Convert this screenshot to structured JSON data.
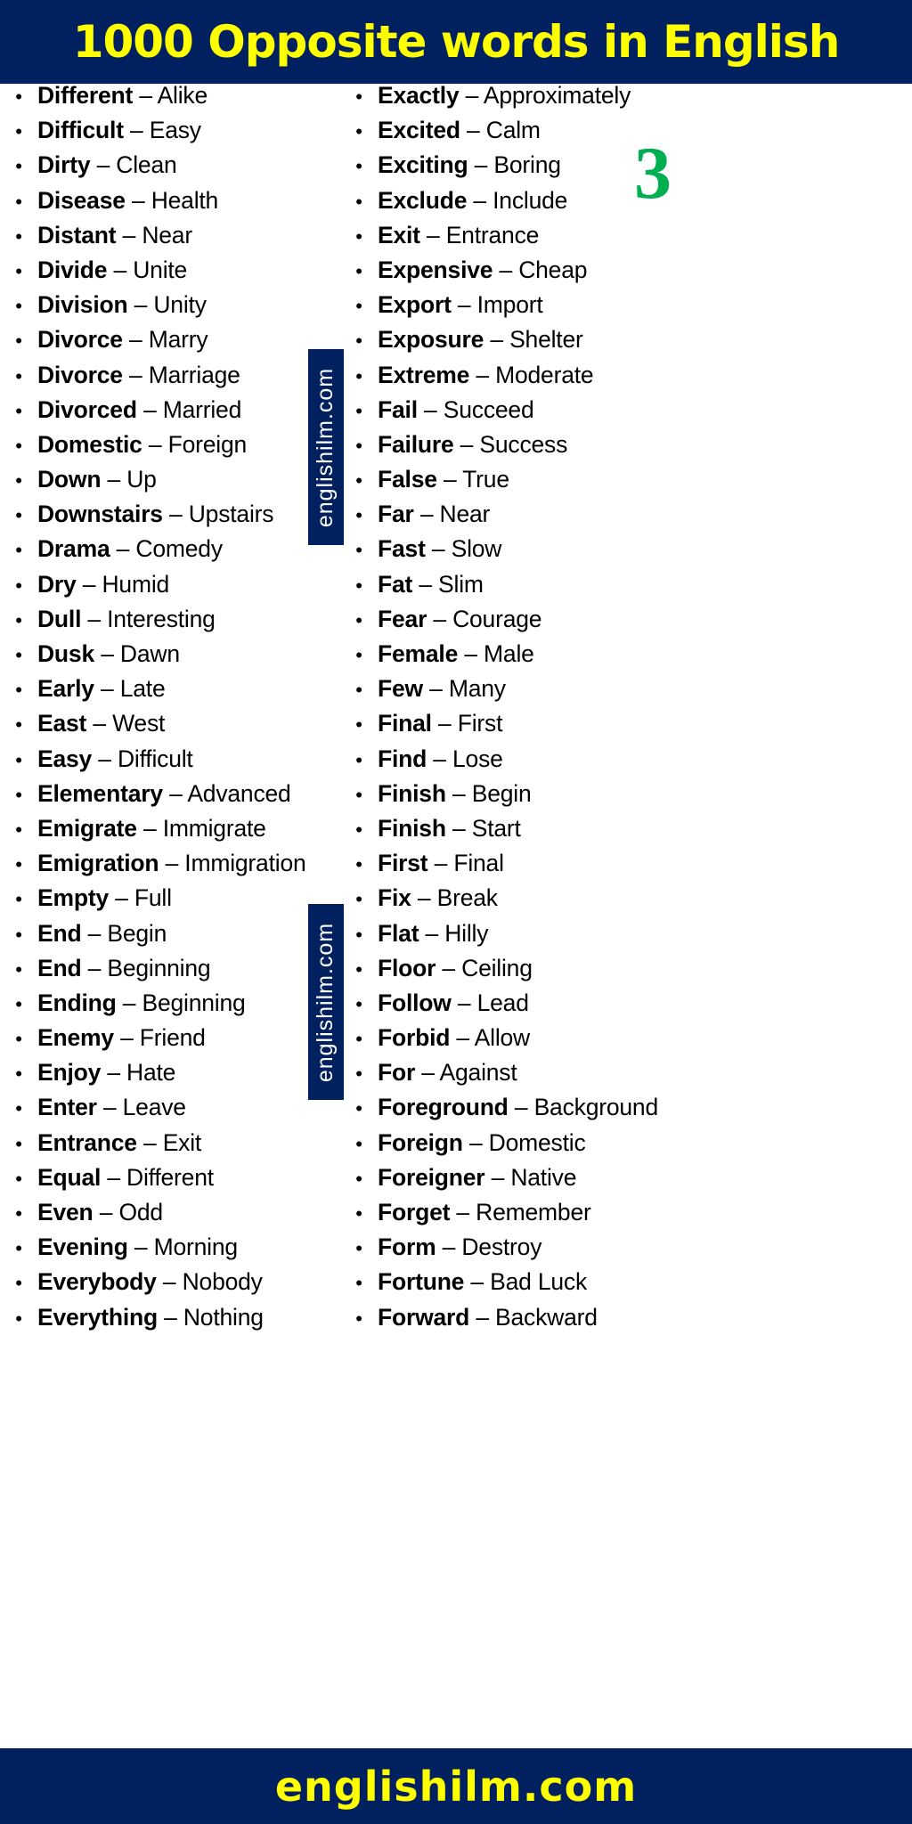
{
  "header": {
    "title": "1000 Opposite words in English"
  },
  "page_number": "3",
  "watermark": "englishilm.com",
  "footer": {
    "text": "englishilm.com"
  },
  "colors": {
    "navy": "#002060",
    "yellow": "#ffff00",
    "green": "#00b050"
  },
  "separator": "–",
  "left_column": [
    [
      "Different",
      "Alike"
    ],
    [
      "Difficult",
      "Easy"
    ],
    [
      "Dirty",
      "Clean"
    ],
    [
      "Disease",
      "Health"
    ],
    [
      "Distant",
      "Near"
    ],
    [
      "Divide",
      "Unite"
    ],
    [
      "Division",
      "Unity"
    ],
    [
      "Divorce",
      "Marry"
    ],
    [
      "Divorce",
      "Marriage"
    ],
    [
      "Divorced",
      "Married"
    ],
    [
      "Domestic",
      "Foreign"
    ],
    [
      "Down",
      "Up"
    ],
    [
      "Downstairs",
      "Upstairs"
    ],
    [
      "Drama",
      "Comedy"
    ],
    [
      "Dry",
      "Humid"
    ],
    [
      "Dull",
      "Interesting"
    ],
    [
      "Dusk",
      "Dawn"
    ],
    [
      "Early",
      "Late"
    ],
    [
      "East",
      "West"
    ],
    [
      "Easy",
      "Difficult"
    ],
    [
      "Elementary",
      "Advanced"
    ],
    [
      "Emigrate",
      "Immigrate"
    ],
    [
      "Emigration",
      "Immigration"
    ],
    [
      "Empty",
      "Full"
    ],
    [
      "End",
      "Begin"
    ],
    [
      "End",
      "Beginning"
    ],
    [
      "Ending",
      "Beginning"
    ],
    [
      "Enemy",
      "Friend"
    ],
    [
      "Enjoy",
      "Hate"
    ],
    [
      "Enter",
      "Leave"
    ],
    [
      "Entrance",
      "Exit"
    ],
    [
      "Equal",
      "Different"
    ],
    [
      "Even",
      "Odd"
    ],
    [
      "Evening",
      "Morning"
    ],
    [
      "Everybody",
      "Nobody"
    ],
    [
      "Everything",
      "Nothing"
    ]
  ],
  "right_column": [
    [
      "Exactly",
      "Approximately"
    ],
    [
      "Excited",
      "Calm"
    ],
    [
      "Exciting",
      "Boring"
    ],
    [
      "Exclude",
      "Include"
    ],
    [
      "Exit",
      "Entrance"
    ],
    [
      "Expensive",
      "Cheap"
    ],
    [
      "Export",
      "Import"
    ],
    [
      "Exposure",
      "Shelter"
    ],
    [
      "Extreme",
      "Moderate"
    ],
    [
      "Fail",
      "Succeed"
    ],
    [
      "Failure",
      "Success"
    ],
    [
      "False",
      "True"
    ],
    [
      "Far",
      "Near"
    ],
    [
      "Fast",
      "Slow"
    ],
    [
      "Fat",
      "Slim"
    ],
    [
      "Fear",
      "Courage"
    ],
    [
      "Female",
      "Male"
    ],
    [
      "Few",
      "Many"
    ],
    [
      "Final",
      "First"
    ],
    [
      "Find",
      "Lose"
    ],
    [
      "Finish",
      "Begin"
    ],
    [
      "Finish",
      "Start"
    ],
    [
      "First",
      "Final"
    ],
    [
      "Fix",
      "Break"
    ],
    [
      "Flat",
      "Hilly"
    ],
    [
      "Floor",
      "Ceiling"
    ],
    [
      "Follow",
      "Lead"
    ],
    [
      "Forbid",
      "Allow"
    ],
    [
      "For",
      "Against"
    ],
    [
      "Foreground",
      "Background"
    ],
    [
      "Foreign",
      "Domestic"
    ],
    [
      "Foreigner",
      "Native"
    ],
    [
      "Forget",
      "Remember"
    ],
    [
      "Form",
      "Destroy"
    ],
    [
      "Fortune",
      "Bad Luck"
    ],
    [
      "Forward",
      "Backward"
    ]
  ]
}
